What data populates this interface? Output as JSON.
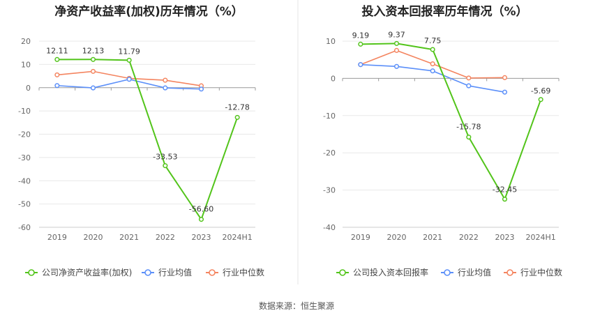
{
  "charts": [
    {
      "title": "净资产收益率(加权)历年情况（%）"
    },
    {
      "title": "投入资本回报率历年情况（%）"
    }
  ],
  "source_text": "数据来源：恒生聚源",
  "colors": {
    "company": "#52c41a",
    "industry_avg": "#5b8ff9",
    "industry_median": "#f4845f"
  },
  "chart_data": [
    {
      "type": "line",
      "title": "净资产收益率(加权)历年情况（%）",
      "categories": [
        "2019",
        "2020",
        "2021",
        "2022",
        "2023",
        "2024H1"
      ],
      "ylim": [
        -60,
        20
      ],
      "yticks": [
        20,
        10,
        0,
        -10,
        -20,
        -30,
        -40,
        -50,
        -60
      ],
      "grid": true,
      "legend_position": "bottom",
      "series": [
        {
          "name": "公司净资产收益率(加权)",
          "color": "#52c41a",
          "values": [
            12.11,
            12.13,
            11.79,
            -33.53,
            -56.6,
            -12.78
          ],
          "labels": [
            "12.11",
            "12.13",
            "11.79",
            "-33.53",
            "-56.60",
            "-12.78"
          ]
        },
        {
          "name": "行业均值",
          "color": "#5b8ff9",
          "values": [
            0.9,
            -0.1,
            3.6,
            -0.1,
            -0.6,
            null
          ]
        },
        {
          "name": "行业中位数",
          "color": "#f4845f",
          "values": [
            5.5,
            7.0,
            4.0,
            3.2,
            0.8,
            null
          ]
        }
      ]
    },
    {
      "type": "line",
      "title": "投入资本回报率历年情况（%）",
      "categories": [
        "2019",
        "2020",
        "2021",
        "2022",
        "2023",
        "2024H1"
      ],
      "ylim": [
        -40,
        10
      ],
      "yticks": [
        10,
        0,
        -10,
        -20,
        -30,
        -40
      ],
      "grid": true,
      "legend_position": "bottom",
      "series": [
        {
          "name": "公司投入资本回报率",
          "color": "#52c41a",
          "values": [
            9.19,
            9.37,
            7.75,
            -15.78,
            -32.45,
            -5.69
          ],
          "labels": [
            "9.19",
            "9.37",
            "7.75",
            "-15.78",
            "-32.45",
            "-5.69"
          ]
        },
        {
          "name": "行业均值",
          "color": "#5b8ff9",
          "values": [
            3.7,
            3.2,
            2.0,
            -2.0,
            -3.7,
            null
          ]
        },
        {
          "name": "行业中位数",
          "color": "#f4845f",
          "values": [
            3.7,
            7.5,
            3.9,
            0.1,
            0.2,
            null
          ]
        }
      ]
    }
  ]
}
